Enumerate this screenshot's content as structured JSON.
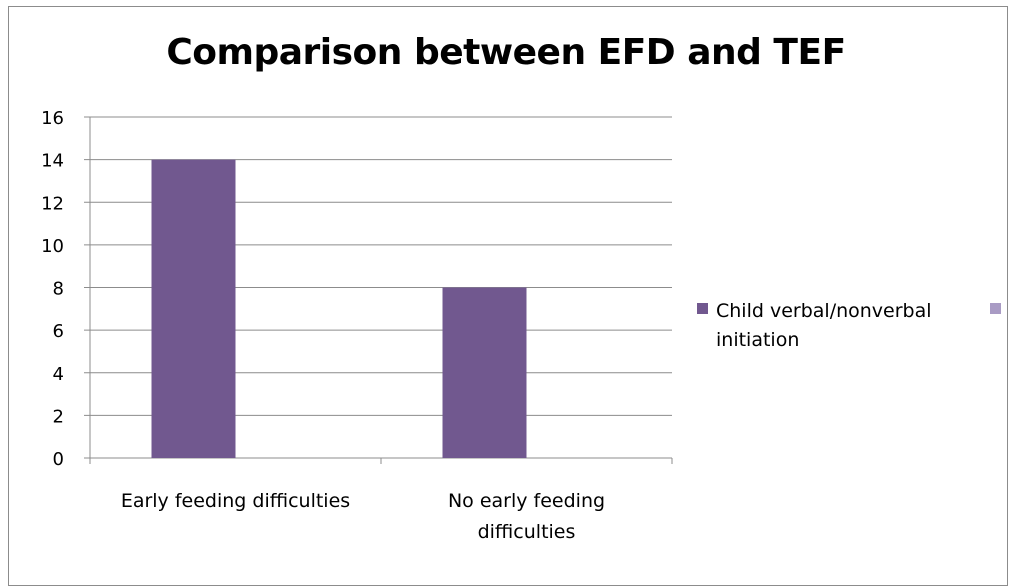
{
  "chart_data": {
    "type": "bar",
    "title": "Comparison between EFD and TEF",
    "categories": [
      [
        "Early feeding difficulties"
      ],
      [
        "No early feeding",
        "difficulties"
      ]
    ],
    "series": [
      {
        "name": [
          "Child verbal/nonverbal",
          "initiation"
        ],
        "values": [
          14,
          8
        ],
        "color": "#71588f"
      },
      {
        "values": [
          0,
          0
        ],
        "color": "#a99bc4"
      }
    ],
    "ylim": [
      0,
      16
    ],
    "yticks": [
      0,
      2,
      4,
      6,
      8,
      10,
      12,
      14,
      16
    ],
    "grid": true,
    "legend": "right"
  }
}
